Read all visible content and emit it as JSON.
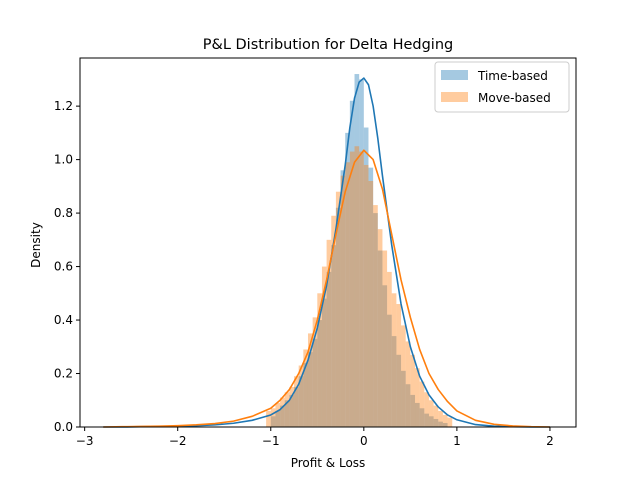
{
  "chart_data": {
    "type": "histogram",
    "title": "P&L Distribution for Delta Hedging",
    "xlabel": "Profit & Loss",
    "ylabel": "Density",
    "xlim": [
      -3.05,
      2.28
    ],
    "ylim": [
      0,
      1.38
    ],
    "xticks": [
      -3,
      -2,
      -1,
      0,
      1,
      2
    ],
    "yticks": [
      0.0,
      0.2,
      0.4,
      0.6,
      0.8,
      1.0,
      1.2
    ],
    "xtick_labels": [
      "−3",
      "−2",
      "−1",
      "0",
      "1",
      "2"
    ],
    "ytick_labels": [
      "0.0",
      "0.2",
      "0.4",
      "0.6",
      "0.8",
      "1.0",
      "1.2"
    ],
    "legend_position": "top-right",
    "grid": false,
    "bins": {
      "edges": [
        -1.0,
        -0.9,
        -0.8,
        -0.7,
        -0.6,
        -0.5,
        -0.4,
        -0.3,
        -0.2,
        -0.1,
        0.0,
        0.1,
        0.2,
        0.3,
        0.4,
        0.5,
        0.6,
        0.7,
        0.8,
        0.9,
        1.0
      ]
    },
    "series": [
      {
        "name": "Time-based",
        "color": "#1f77b4",
        "bar_alpha": 0.4,
        "bar_edges": [
          -1.0,
          -0.95,
          -0.9,
          -0.85,
          -0.8,
          -0.75,
          -0.7,
          -0.65,
          -0.6,
          -0.55,
          -0.5,
          -0.45,
          -0.4,
          -0.35,
          -0.3,
          -0.25,
          -0.2,
          -0.15,
          -0.1,
          -0.05,
          0.0,
          0.05,
          0.1,
          0.15,
          0.2,
          0.25,
          0.3,
          0.35,
          0.4,
          0.45,
          0.5,
          0.55,
          0.6,
          0.65,
          0.7,
          0.75,
          0.8,
          0.85,
          0.9
        ],
        "bar_values": [
          0.04,
          0.06,
          0.08,
          0.1,
          0.12,
          0.15,
          0.19,
          0.24,
          0.28,
          0.33,
          0.4,
          0.48,
          0.58,
          0.68,
          0.82,
          0.96,
          1.1,
          1.22,
          1.32,
          1.3,
          1.12,
          0.97,
          0.8,
          0.66,
          0.53,
          0.42,
          0.34,
          0.27,
          0.21,
          0.16,
          0.12,
          0.09,
          0.07,
          0.05,
          0.04,
          0.03,
          0.02,
          0.015
        ],
        "kde_x": [
          -2.8,
          -2.6,
          -2.4,
          -2.2,
          -2.0,
          -1.8,
          -1.6,
          -1.4,
          -1.2,
          -1.0,
          -0.9,
          -0.8,
          -0.7,
          -0.6,
          -0.5,
          -0.4,
          -0.3,
          -0.2,
          -0.15,
          -0.1,
          -0.05,
          0.0,
          0.05,
          0.1,
          0.15,
          0.2,
          0.3,
          0.4,
          0.5,
          0.6,
          0.7,
          0.8,
          0.9,
          1.0,
          1.2,
          1.4,
          1.6,
          1.8,
          2.0
        ],
        "kde_y": [
          0.0,
          0.0,
          0.001,
          0.002,
          0.003,
          0.005,
          0.008,
          0.014,
          0.025,
          0.045,
          0.065,
          0.1,
          0.16,
          0.25,
          0.37,
          0.53,
          0.74,
          0.98,
          1.12,
          1.23,
          1.29,
          1.305,
          1.28,
          1.2,
          1.08,
          0.94,
          0.68,
          0.46,
          0.3,
          0.19,
          0.12,
          0.075,
          0.045,
          0.027,
          0.009,
          0.003,
          0.001,
          0.0,
          0.0
        ]
      },
      {
        "name": "Move-based",
        "color": "#ff7f0e",
        "bar_alpha": 0.4,
        "bar_edges": [
          -1.05,
          -1.0,
          -0.95,
          -0.9,
          -0.85,
          -0.8,
          -0.75,
          -0.7,
          -0.65,
          -0.6,
          -0.55,
          -0.5,
          -0.45,
          -0.4,
          -0.35,
          -0.3,
          -0.25,
          -0.2,
          -0.15,
          -0.1,
          -0.05,
          0.0,
          0.05,
          0.1,
          0.15,
          0.2,
          0.25,
          0.3,
          0.35,
          0.4,
          0.45,
          0.5,
          0.55,
          0.6,
          0.65,
          0.7,
          0.75,
          0.8,
          0.85,
          0.9,
          0.95
        ],
        "bar_values": [
          0.06,
          0.07,
          0.09,
          0.11,
          0.13,
          0.15,
          0.19,
          0.23,
          0.29,
          0.35,
          0.41,
          0.5,
          0.6,
          0.7,
          0.79,
          0.88,
          0.94,
          0.99,
          1.03,
          1.05,
          1.03,
          0.98,
          0.92,
          0.83,
          0.74,
          0.66,
          0.58,
          0.5,
          0.46,
          0.38,
          0.32,
          0.27,
          0.22,
          0.17,
          0.13,
          0.1,
          0.08,
          0.06,
          0.045,
          0.035
        ],
        "kde_x": [
          -2.8,
          -2.6,
          -2.4,
          -2.2,
          -2.0,
          -1.8,
          -1.6,
          -1.4,
          -1.2,
          -1.0,
          -0.9,
          -0.8,
          -0.7,
          -0.6,
          -0.5,
          -0.4,
          -0.3,
          -0.2,
          -0.1,
          0.0,
          0.1,
          0.2,
          0.3,
          0.4,
          0.5,
          0.6,
          0.7,
          0.8,
          0.9,
          1.0,
          1.2,
          1.4,
          1.6,
          1.8,
          2.0
        ],
        "kde_y": [
          0.0,
          0.001,
          0.002,
          0.003,
          0.005,
          0.008,
          0.013,
          0.022,
          0.04,
          0.07,
          0.1,
          0.14,
          0.2,
          0.28,
          0.4,
          0.55,
          0.72,
          0.88,
          0.99,
          1.035,
          1.0,
          0.89,
          0.72,
          0.55,
          0.41,
          0.29,
          0.2,
          0.14,
          0.095,
          0.06,
          0.025,
          0.01,
          0.004,
          0.001,
          0.0
        ]
      }
    ]
  }
}
